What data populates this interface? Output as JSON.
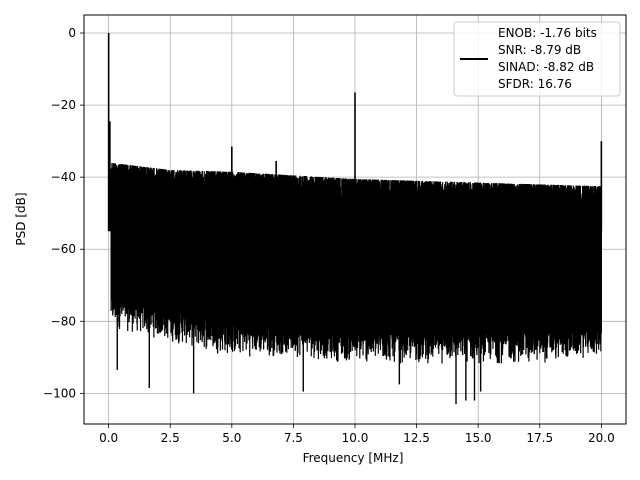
{
  "chart_data": {
    "type": "line",
    "xlabel": "Frequency [MHz]",
    "ylabel": "PSD [dB]",
    "xlim": [
      -1.0,
      21.0
    ],
    "ylim": [
      -108.5,
      5.0
    ],
    "xticks": [
      0.0,
      2.5,
      5.0,
      7.5,
      10.0,
      12.5,
      15.0,
      17.5,
      20.0
    ],
    "xtick_labels": [
      "0.0",
      "2.5",
      "5.0",
      "7.5",
      "10.0",
      "12.5",
      "15.0",
      "17.5",
      "20.0"
    ],
    "yticks": [
      0,
      -20,
      -40,
      -60,
      -80,
      -100
    ],
    "ytick_labels": [
      "0",
      "−20",
      "−40",
      "−60",
      "−80",
      "−100"
    ],
    "grid": true,
    "legend_position": "top-right",
    "legend_lines": [
      "ENOB: -1.76 bits",
      "SNR: -8.79 dB",
      "SINAD: -8.82 dB",
      "SFDR: 16.76"
    ],
    "series": [
      {
        "color": "#000000",
        "noise_floor_envelope": {
          "x": [
            0.1,
            2.5,
            5.0,
            7.5,
            10.0,
            12.5,
            15.0,
            17.5,
            20.0
          ],
          "upper_db": [
            -36,
            -38,
            -38.5,
            -39.5,
            -40.5,
            -41,
            -41.5,
            -42,
            -42.5
          ],
          "lower_db": [
            -82,
            -86,
            -90,
            -90,
            -92,
            -92,
            -92,
            -92,
            -90
          ]
        },
        "peaks": [
          {
            "x": 0.0,
            "y": 0.0
          },
          {
            "x": 0.05,
            "y": -24.5
          },
          {
            "x": 5.0,
            "y": -31.5
          },
          {
            "x": 6.8,
            "y": -35.5
          },
          {
            "x": 10.0,
            "y": -16.5
          },
          {
            "x": 20.0,
            "y": -30.0
          }
        ],
        "dips": [
          {
            "x": 0.35,
            "y": -93.5
          },
          {
            "x": 1.65,
            "y": -98.5
          },
          {
            "x": 3.45,
            "y": -100.0
          },
          {
            "x": 7.9,
            "y": -99.5
          },
          {
            "x": 11.8,
            "y": -97.5
          },
          {
            "x": 14.1,
            "y": -103.0
          },
          {
            "x": 14.5,
            "y": -102.0
          },
          {
            "x": 14.85,
            "y": -102.0
          },
          {
            "x": 15.1,
            "y": -99.5
          }
        ]
      }
    ]
  }
}
